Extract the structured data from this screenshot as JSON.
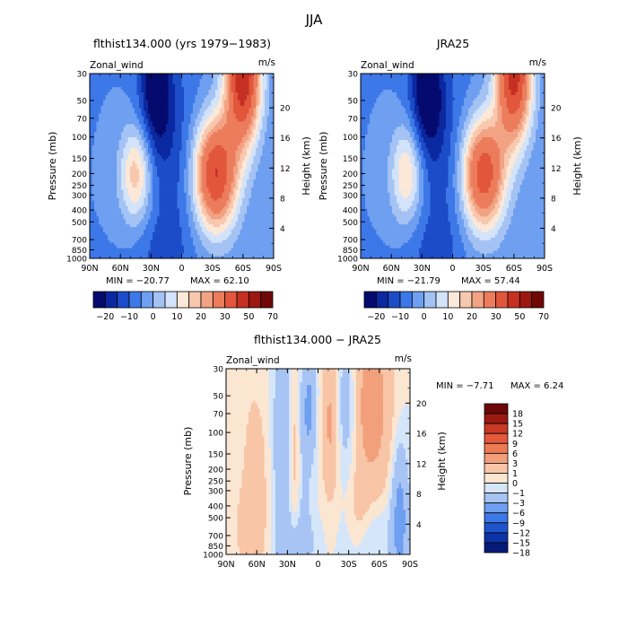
{
  "figure_title": "JJA",
  "colors": {
    "panel_scale_colors": [
      "#050a6e",
      "#0a28a0",
      "#1c4cc8",
      "#3d78e8",
      "#6e9ff0",
      "#a4c3f4",
      "#d2e3fa",
      "#fbe8d8",
      "#f8c8ae",
      "#f2a384",
      "#ec7d5c",
      "#e2563c",
      "#c63022",
      "#9c1710",
      "#700808"
    ],
    "diff_scale_colors": [
      "#061a78",
      "#0b33a6",
      "#1e55cc",
      "#3d78e8",
      "#6e9ff0",
      "#a7c4f4",
      "#d6e6fa",
      "#fbe6d2",
      "#f8c5a7",
      "#f2a07b",
      "#ec7b55",
      "#e4583b",
      "#c93a24",
      "#9a1a0f",
      "#6e0707"
    ],
    "base": "#ffffff"
  },
  "chart_data": [
    {
      "id": "model",
      "type": "heatmap",
      "title": "flthist134.000 (yrs 1979−1983)",
      "left_label": "Zonal_wind",
      "right_label": "m/s",
      "ylabel": "Pressure (mb)",
      "y2label": "Height (km)",
      "x_ticks": [
        "90N",
        "60N",
        "30N",
        "0",
        "30S",
        "60S",
        "90S"
      ],
      "x_range": [
        "90N",
        "90S"
      ],
      "y_ticks": [
        "30",
        "50",
        "70",
        "100",
        "150",
        "200",
        "250",
        "300",
        "400",
        "500",
        "700",
        "850",
        "1000"
      ],
      "y_range_mb": [
        1000,
        30
      ],
      "y2_ticks": [
        "4",
        "8",
        "12",
        "16",
        "20"
      ],
      "stats": {
        "min": "MIN = −20.77",
        "max": "MAX =  62.10"
      },
      "colorbar": {
        "orientation": "horizontal",
        "labels": [
          "−20",
          "−10",
          "0",
          "10",
          "20",
          "30",
          "50",
          "70"
        ]
      },
      "features": {
        "easterly_min_lat": 25,
        "easterly_min_mb": 40,
        "min": -20.77,
        "westerly_jet_lat": -33,
        "westerly_jet_mb": 200,
        "jet_peak": 62.1,
        "polar_jet_lat": -60,
        "polar_jet_mb": 30,
        "nh_jet_lat": 45,
        "nh_jet_mb": 200,
        "nh_jet_peak": 24
      }
    },
    {
      "id": "reanalysis",
      "type": "heatmap",
      "title": "JRA25",
      "left_label": "Zonal_wind",
      "right_label": "m/s",
      "ylabel": "Pressure (mb)",
      "y2label": "Height (km)",
      "x_ticks": [
        "90N",
        "60N",
        "30N",
        "0",
        "30S",
        "60S",
        "90S"
      ],
      "x_range": [
        "90N",
        "90S"
      ],
      "y_ticks": [
        "30",
        "50",
        "70",
        "100",
        "150",
        "200",
        "250",
        "300",
        "400",
        "500",
        "700",
        "850",
        "1000"
      ],
      "y_range_mb": [
        1000,
        30
      ],
      "y2_ticks": [
        "4",
        "8",
        "12",
        "16",
        "20"
      ],
      "stats": {
        "min": "MIN = −21.79",
        "max": "MAX =  57.44"
      },
      "colorbar": {
        "orientation": "horizontal",
        "labels": [
          "−20",
          "−10",
          "0",
          "10",
          "20",
          "30",
          "50",
          "70"
        ]
      },
      "features": {
        "easterly_min_lat": 25,
        "easterly_min_mb": 40,
        "min": -21.79,
        "westerly_jet_lat": -30,
        "westerly_jet_mb": 200,
        "jet_peak": 57.44,
        "polar_jet_lat": -60,
        "polar_jet_mb": 30,
        "nh_jet_lat": 45,
        "nh_jet_mb": 200,
        "nh_jet_peak": 22
      }
    },
    {
      "id": "difference",
      "type": "heatmap",
      "title": "flthist134.000 − JRA25",
      "left_label": "Zonal_wind",
      "right_label": "m/s",
      "ylabel": "Pressure (mb)",
      "y2label": "Height (km)",
      "x_ticks": [
        "90N",
        "60N",
        "30N",
        "0",
        "30S",
        "60S",
        "90S"
      ],
      "x_range": [
        "90N",
        "90S"
      ],
      "y_ticks": [
        "30",
        "50",
        "70",
        "100",
        "150",
        "200",
        "250",
        "300",
        "400",
        "500",
        "700",
        "850",
        "1000"
      ],
      "y_range_mb": [
        1000,
        30
      ],
      "y2_ticks": [
        "4",
        "8",
        "12",
        "16",
        "20"
      ],
      "stats": {
        "min": "MIN =   −7.71",
        "max": "MAX =    6.24"
      },
      "colorbar": {
        "orientation": "vertical",
        "labels": [
          "18",
          "15",
          "12",
          "9",
          "6",
          "3",
          "1",
          "0",
          "−1",
          "−3",
          "−6",
          "−9",
          "−12",
          "−15",
          "−18"
        ]
      },
      "features": {
        "min": -7.71,
        "max": 6.24
      }
    }
  ]
}
